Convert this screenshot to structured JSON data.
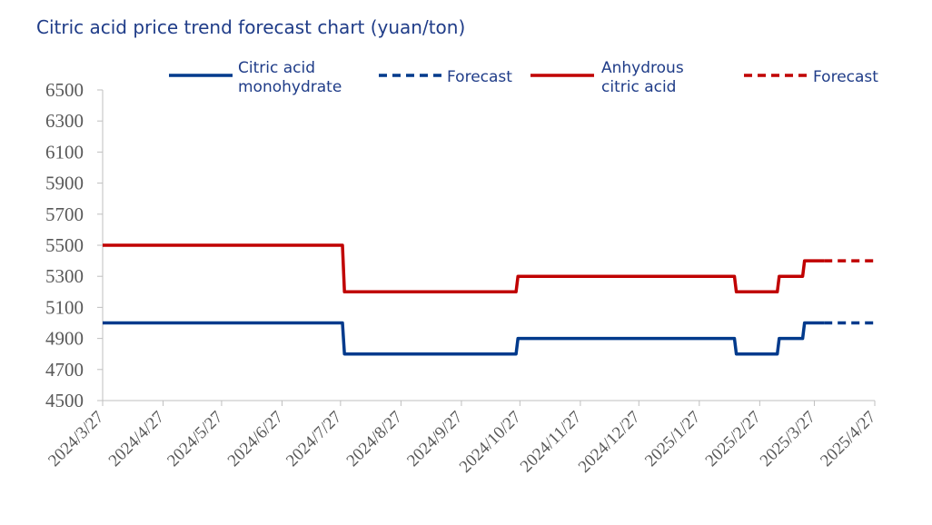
{
  "title": "Citric acid price trend forecast chart (yuan/ton)",
  "chart_data": {
    "type": "line",
    "title": "Citric acid price trend forecast chart (yuan/ton)",
    "ylim": [
      4500,
      6500
    ],
    "yticks": [
      4500,
      4700,
      4900,
      5100,
      5300,
      5500,
      5700,
      5900,
      6100,
      6300,
      6500
    ],
    "xticks": [
      "2024/3/27",
      "2024/4/27",
      "2024/5/27",
      "2024/6/27",
      "2024/7/27",
      "2024/8/27",
      "2024/9/27",
      "2024/10/27",
      "2024/11/27",
      "2024/12/27",
      "2025/1/27",
      "2025/2/27",
      "2025/3/27",
      "2025/4/27"
    ],
    "xlim": [
      "2024/3/27",
      "2025/4/27"
    ],
    "grid": false,
    "legend_position": "top",
    "series": [
      {
        "name": "Citric acid monohydrate",
        "color": "#003a8c",
        "dash": false,
        "points": [
          [
            "2024/3/27",
            5000
          ],
          [
            "2024/7/28",
            5000
          ],
          [
            "2024/7/29",
            4800
          ],
          [
            "2024/10/25",
            4800
          ],
          [
            "2024/10/26",
            4900
          ],
          [
            "2025/2/14",
            4900
          ],
          [
            "2025/2/15",
            4800
          ],
          [
            "2025/3/8",
            4800
          ],
          [
            "2025/3/9",
            4900
          ],
          [
            "2025/3/21",
            4900
          ],
          [
            "2025/3/22",
            5000
          ],
          [
            "2025/4/1",
            5000
          ]
        ]
      },
      {
        "name": "Forecast",
        "color": "#003a8c",
        "dash": true,
        "points": [
          [
            "2025/4/1",
            5000
          ],
          [
            "2025/4/27",
            5000
          ]
        ]
      },
      {
        "name": "Anhydrous citric acid",
        "color": "#c00000",
        "dash": false,
        "points": [
          [
            "2024/3/27",
            5500
          ],
          [
            "2024/7/28",
            5500
          ],
          [
            "2024/7/29",
            5200
          ],
          [
            "2024/10/25",
            5200
          ],
          [
            "2024/10/26",
            5300
          ],
          [
            "2025/2/14",
            5300
          ],
          [
            "2025/2/15",
            5200
          ],
          [
            "2025/3/8",
            5200
          ],
          [
            "2025/3/9",
            5300
          ],
          [
            "2025/3/21",
            5300
          ],
          [
            "2025/3/22",
            5400
          ],
          [
            "2025/4/1",
            5400
          ]
        ]
      },
      {
        "name": "Forecast",
        "color": "#c00000",
        "dash": true,
        "points": [
          [
            "2025/4/1",
            5400
          ],
          [
            "2025/4/27",
            5400
          ]
        ]
      }
    ]
  },
  "legend": [
    {
      "lines": [
        "Citric acid",
        "monohydrate"
      ],
      "color": "#003a8c",
      "dash": false
    },
    {
      "lines": [
        "Forecast"
      ],
      "color": "#003a8c",
      "dash": true
    },
    {
      "lines": [
        "Anhydrous",
        "citric acid"
      ],
      "color": "#c00000",
      "dash": false
    },
    {
      "lines": [
        "Forecast"
      ],
      "color": "#c00000",
      "dash": true
    }
  ]
}
